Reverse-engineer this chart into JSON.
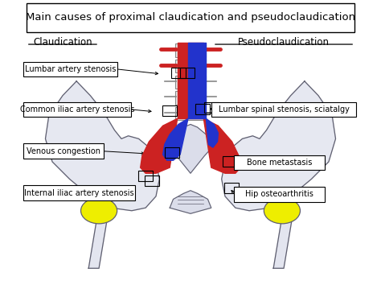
{
  "title": "Main causes of proximal claudication and pseudoclaudication",
  "left_heading": "Claudication",
  "right_heading": "Pseudoclaudication",
  "bg_color": "#ffffff",
  "title_fontsize": 9.5,
  "label_fontsize": 7.0,
  "heading_fontsize": 8.5,
  "artery_color": "#cc2222",
  "vein_color": "#2233cc",
  "yellow_color": "#eeee00",
  "pelvis_color": "#c8cce0",
  "pelvis_edge": "#606070",
  "spine_fill": "#e8e8e8",
  "spine_edge": "#888888"
}
